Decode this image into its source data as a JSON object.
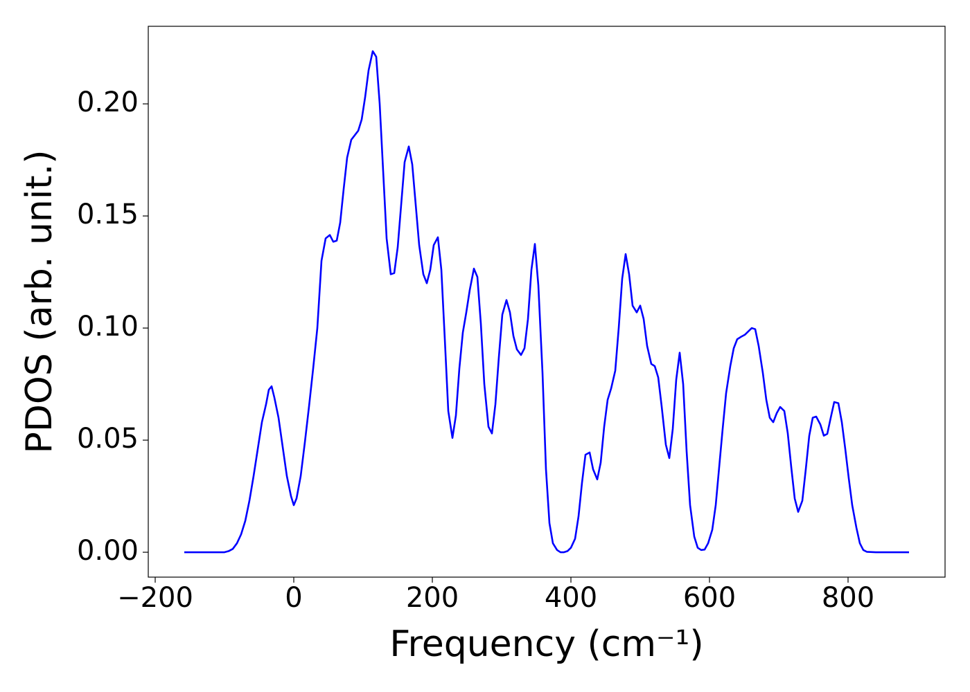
{
  "chart_data": {
    "type": "line",
    "xlabel": "Frequency (cm⁻¹)",
    "ylabel": "PDOS (arb. unit.)",
    "color": "#0000ff",
    "x": [
      -158,
      -100,
      -94,
      -88,
      -82,
      -76,
      -70,
      -64,
      -58,
      -52,
      -46,
      -40,
      -36,
      -32,
      -28,
      -22,
      -16,
      -10,
      -4,
      0,
      4,
      10,
      16,
      22,
      28,
      34,
      40,
      46,
      52,
      57,
      62,
      67,
      72,
      77,
      83,
      88,
      93,
      98,
      103,
      108,
      114,
      119,
      124,
      129,
      134,
      140,
      145,
      150,
      155,
      160,
      166,
      171,
      176,
      181,
      187,
      192,
      197,
      202,
      208,
      213,
      218,
      223,
      229,
      234,
      239,
      244,
      249,
      254,
      260,
      265,
      270,
      275,
      281,
      286,
      291,
      296,
      301,
      307,
      312,
      317,
      322,
      328,
      333,
      338,
      343,
      348,
      353,
      359,
      364,
      369,
      374,
      380,
      385,
      390,
      395,
      400,
      406,
      411,
      416,
      421,
      427,
      432,
      438,
      443,
      448,
      453,
      458,
      464,
      469,
      474,
      479,
      484,
      489,
      495,
      500,
      505,
      510,
      516,
      521,
      526,
      531,
      537,
      542,
      547,
      552,
      557,
      562,
      567,
      572,
      578,
      583,
      588,
      593,
      598,
      604,
      609,
      614,
      619,
      624,
      630,
      635,
      640,
      645,
      651,
      656,
      661,
      666,
      671,
      677,
      682,
      687,
      692,
      697,
      702,
      708,
      713,
      718,
      723,
      728,
      734,
      739,
      744,
      749,
      754,
      760,
      765,
      770,
      775,
      780,
      786,
      791,
      796,
      801,
      806,
      812,
      817,
      822,
      827,
      840,
      888
    ],
    "values": [
      0,
      0,
      0.0005,
      0.0015,
      0.004,
      0.008,
      0.014,
      0.023,
      0.034,
      0.046,
      0.058,
      0.066,
      0.0725,
      0.074,
      0.069,
      0.06,
      0.047,
      0.034,
      0.025,
      0.021,
      0.024,
      0.034,
      0.049,
      0.065,
      0.082,
      0.1,
      0.13,
      0.14,
      0.1415,
      0.1385,
      0.139,
      0.147,
      0.162,
      0.176,
      0.184,
      0.186,
      0.188,
      0.193,
      0.203,
      0.215,
      0.2235,
      0.221,
      0.2,
      0.17,
      0.14,
      0.124,
      0.1245,
      0.136,
      0.155,
      0.174,
      0.181,
      0.173,
      0.155,
      0.137,
      0.124,
      0.12,
      0.126,
      0.137,
      0.1405,
      0.126,
      0.095,
      0.063,
      0.051,
      0.061,
      0.082,
      0.098,
      0.107,
      0.117,
      0.1265,
      0.1228,
      0.102,
      0.075,
      0.056,
      0.053,
      0.066,
      0.087,
      0.106,
      0.1125,
      0.107,
      0.0965,
      0.0905,
      0.088,
      0.091,
      0.104,
      0.126,
      0.1375,
      0.119,
      0.08,
      0.037,
      0.013,
      0.004,
      0.001,
      0,
      0,
      0.0005,
      0.002,
      0.006,
      0.016,
      0.031,
      0.0435,
      0.0445,
      0.037,
      0.0325,
      0.04,
      0.056,
      0.068,
      0.073,
      0.081,
      0.1,
      0.122,
      0.133,
      0.124,
      0.11,
      0.107,
      0.11,
      0.104,
      0.092,
      0.084,
      0.083,
      0.078,
      0.065,
      0.048,
      0.042,
      0.055,
      0.077,
      0.089,
      0.075,
      0.045,
      0.021,
      0.007,
      0.002,
      0.001,
      0.0012,
      0.004,
      0.01,
      0.021,
      0.038,
      0.055,
      0.071,
      0.083,
      0.091,
      0.095,
      0.096,
      0.097,
      0.0985,
      0.1,
      0.0995,
      0.092,
      0.08,
      0.068,
      0.06,
      0.058,
      0.062,
      0.0648,
      0.063,
      0.053,
      0.038,
      0.024,
      0.018,
      0.023,
      0.037,
      0.052,
      0.06,
      0.0605,
      0.057,
      0.052,
      0.0528,
      0.06,
      0.067,
      0.0665,
      0.058,
      0.046,
      0.033,
      0.021,
      0.011,
      0.004,
      0.001,
      0.0002,
      0,
      0
    ],
    "xlim": [
      -210,
      940
    ],
    "ylim": [
      -0.0111,
      0.2346
    ],
    "xticks": [
      {
        "value": -200,
        "label": "−200"
      },
      0,
      200,
      400,
      600,
      800
    ],
    "yticks": [
      {
        "value": 0,
        "label": "0.00"
      },
      {
        "value": 0.05,
        "label": "0.05"
      },
      {
        "value": 0.1,
        "label": "0.10"
      },
      {
        "value": 0.15,
        "label": "0.15"
      },
      {
        "value": 0.2,
        "label": "0.20"
      }
    ]
  }
}
